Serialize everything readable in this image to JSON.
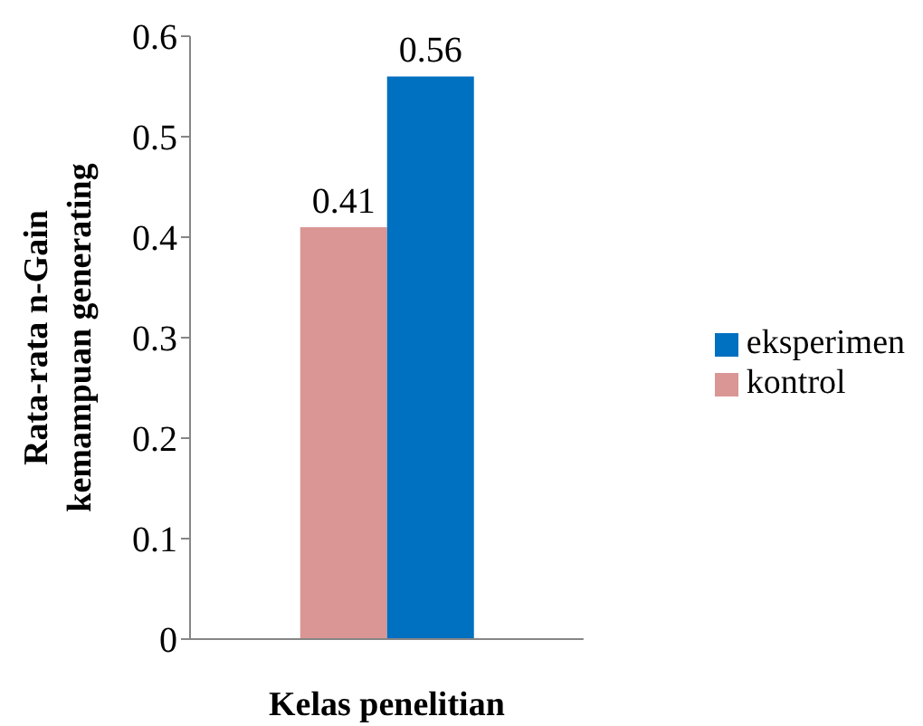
{
  "chart_data": {
    "type": "bar",
    "ylabel": "Rata-rata n-Gain kemampuan generating",
    "xlabel": "Kelas penelitian",
    "categories": [
      null
    ],
    "series": [
      {
        "name": "kontrol",
        "color": "#d99694",
        "values": [
          0.41
        ]
      },
      {
        "name": "eksperimen",
        "color": "#0070c0",
        "values": [
          0.56
        ]
      }
    ],
    "ylim": [
      0,
      0.6
    ],
    "yticks": [
      0,
      0.1,
      0.2,
      0.3,
      0.4,
      0.5,
      0.6
    ],
    "grid": false,
    "legend": "right",
    "data_labels": true
  }
}
